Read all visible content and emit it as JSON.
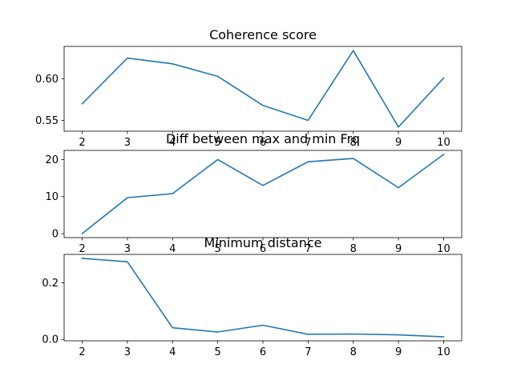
{
  "chart_data": [
    {
      "type": "line",
      "title": "Coherence score",
      "x": [
        2,
        3,
        4,
        5,
        6,
        7,
        8,
        9,
        10
      ],
      "series": [
        {
          "values": [
            0.57,
            0.625,
            0.618,
            0.603,
            0.568,
            0.55,
            0.634,
            0.542,
            0.601
          ]
        }
      ],
      "xticks": [
        2,
        3,
        4,
        5,
        6,
        7,
        8,
        9,
        10
      ],
      "yticks": [
        0.55,
        0.6
      ],
      "ytick_labels": [
        "0.55",
        "0.60"
      ],
      "xlim": [
        1.6,
        10.4
      ],
      "ylim": [
        0.537,
        0.639
      ],
      "grid": false,
      "color": "#1f77b4"
    },
    {
      "type": "line",
      "title": "Diff between max and min Frq",
      "x": [
        2,
        3,
        4,
        5,
        6,
        7,
        8,
        9,
        10
      ],
      "series": [
        {
          "values": [
            0,
            9.7,
            10.8,
            20.0,
            13.0,
            19.4,
            20.3,
            12.4,
            21.4
          ]
        }
      ],
      "xticks": [
        2,
        3,
        4,
        5,
        6,
        7,
        8,
        9,
        10
      ],
      "yticks": [
        0,
        10,
        20
      ],
      "ytick_labels": [
        "0",
        "10",
        "20"
      ],
      "xlim": [
        1.6,
        10.4
      ],
      "ylim": [
        -1.07,
        22.47
      ],
      "grid": false,
      "color": "#1f77b4"
    },
    {
      "type": "line",
      "title": "Minimum distance",
      "x": [
        2,
        3,
        4,
        5,
        6,
        7,
        8,
        9,
        10
      ],
      "series": [
        {
          "values": [
            0.286,
            0.274,
            0.041,
            0.026,
            0.05,
            0.018,
            0.019,
            0.016,
            0.009
          ]
        }
      ],
      "xticks": [
        2,
        3,
        4,
        5,
        6,
        7,
        8,
        9,
        10
      ],
      "yticks": [
        0.0,
        0.2
      ],
      "ytick_labels": [
        "0.0",
        "0.2"
      ],
      "xlim": [
        1.6,
        10.4
      ],
      "ylim": [
        -0.005,
        0.3
      ],
      "grid": false,
      "color": "#1f77b4"
    }
  ]
}
